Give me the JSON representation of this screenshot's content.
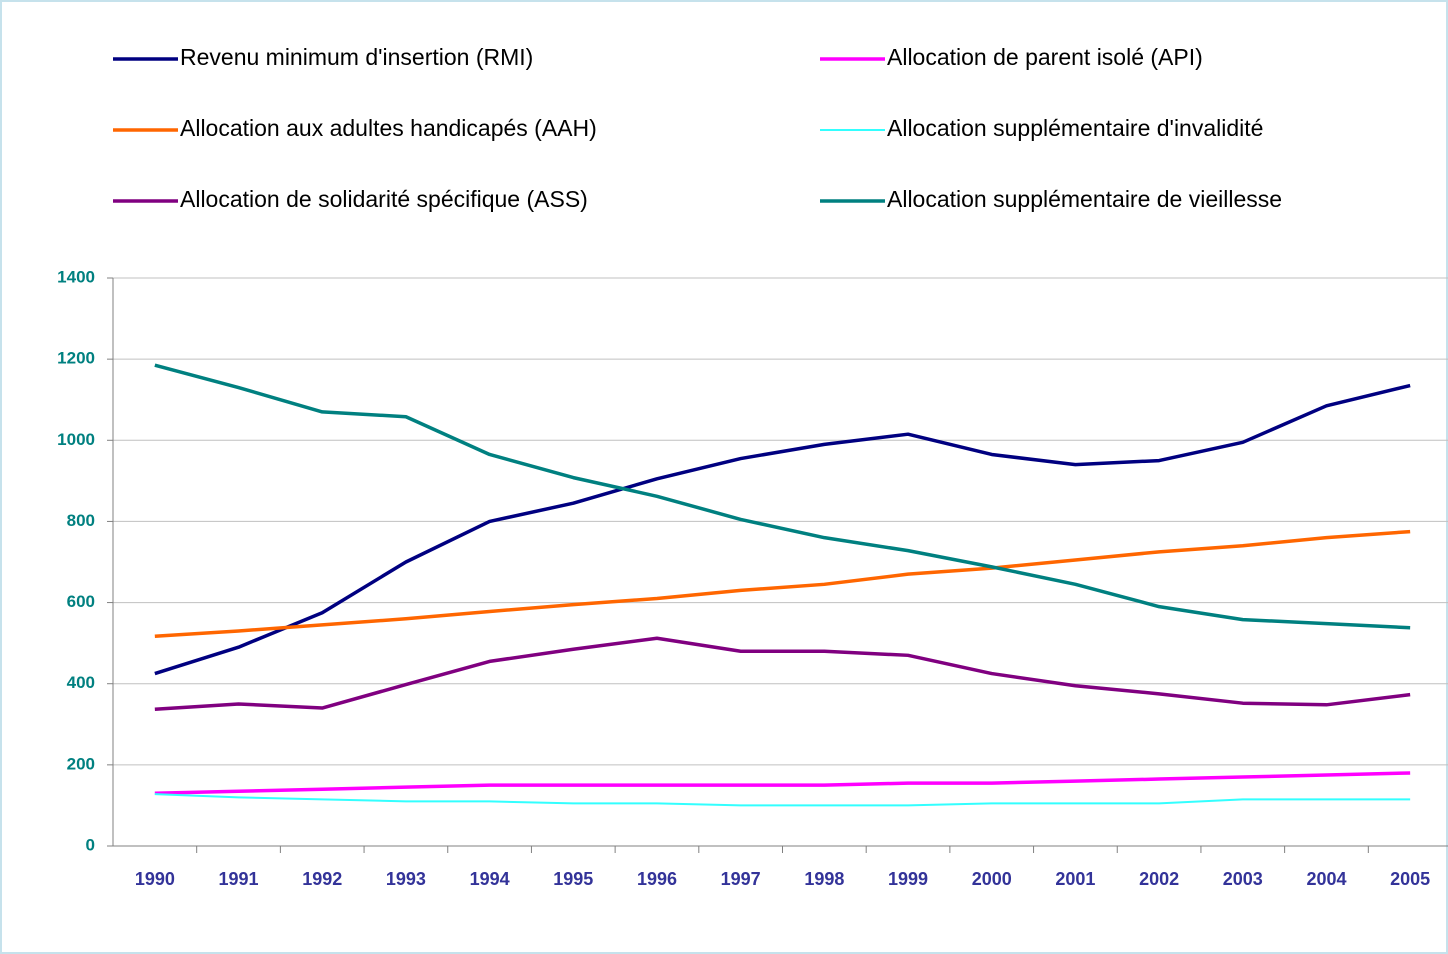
{
  "chart_data": {
    "type": "line",
    "categories": [
      "1990",
      "1991",
      "1992",
      "1993",
      "1994",
      "1995",
      "1996",
      "1997",
      "1998",
      "1999",
      "2000",
      "2001",
      "2002",
      "2003",
      "2004",
      "2005"
    ],
    "series": [
      {
        "name": "Revenu minimum d'insertion (RMI)",
        "color": "#000080",
        "values": [
          425,
          490,
          575,
          700,
          800,
          845,
          905,
          955,
          990,
          1015,
          965,
          940,
          950,
          995,
          1085,
          1135
        ]
      },
      {
        "name": "Allocation de parent isolé (API)",
        "color": "#ff00ff",
        "values": [
          130,
          135,
          140,
          145,
          150,
          150,
          150,
          150,
          150,
          155,
          155,
          160,
          165,
          170,
          175,
          180
        ]
      },
      {
        "name": "Allocation aux adultes handicapés (AAH)",
        "color": "#ff6600",
        "values": [
          517,
          530,
          545,
          560,
          578,
          595,
          610,
          630,
          645,
          670,
          685,
          705,
          725,
          740,
          760,
          775
        ]
      },
      {
        "name": "Allocation supplémentaire d'invalidité",
        "color": "#33ffff",
        "values": [
          128,
          120,
          115,
          110,
          110,
          105,
          105,
          100,
          100,
          100,
          105,
          105,
          105,
          115,
          115,
          115
        ]
      },
      {
        "name": "Allocation de solidarité spécifique (ASS)",
        "color": "#800080",
        "values": [
          337,
          350,
          340,
          398,
          455,
          485,
          512,
          480,
          480,
          470,
          425,
          395,
          375,
          352,
          348,
          373
        ]
      },
      {
        "name": "Allocation supplémentaire de vieillesse",
        "color": "#008080",
        "values": [
          1185,
          1130,
          1070,
          1058,
          965,
          908,
          862,
          805,
          760,
          728,
          688,
          645,
          590,
          558,
          548,
          538
        ]
      }
    ],
    "ylim": [
      0,
      1400
    ],
    "yticks": [
      0,
      200,
      400,
      600,
      800,
      1000,
      1200,
      1400
    ],
    "grid": true
  }
}
